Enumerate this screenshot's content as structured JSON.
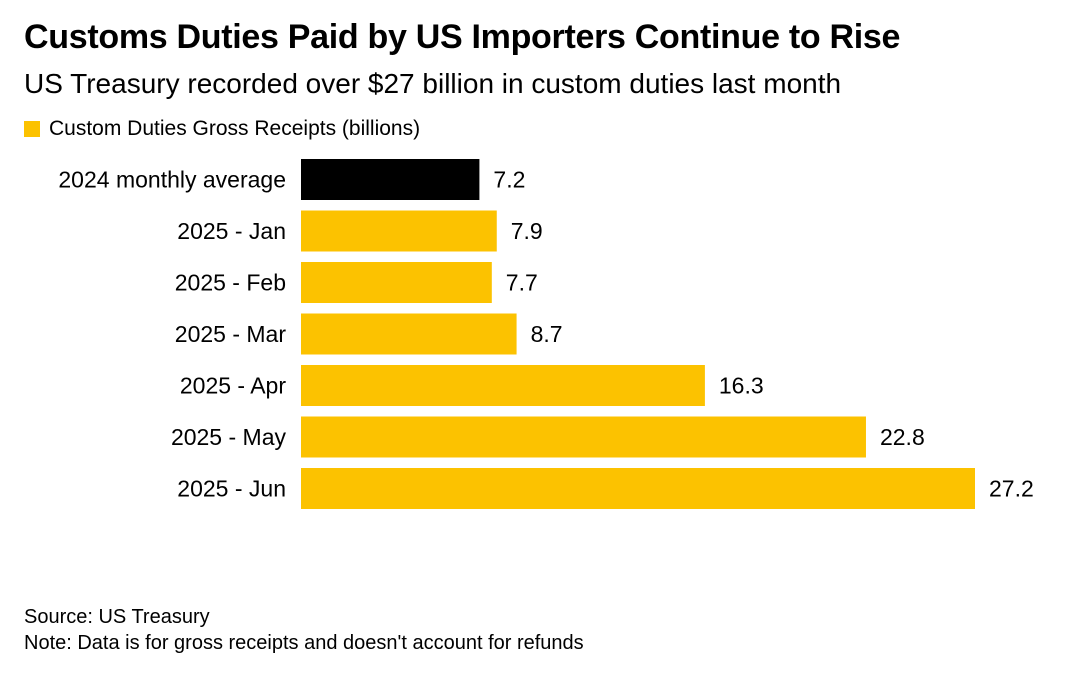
{
  "header": {
    "title": "Customs Duties Paid by US Importers Continue to Rise",
    "subtitle": "US Treasury recorded over $27 billion in custom duties last month"
  },
  "legend": {
    "label": "Custom Duties Gross Receipts (billions)",
    "color": "#FCC200"
  },
  "chart_data": {
    "type": "bar",
    "orientation": "horizontal",
    "title": "Customs Duties Paid by US Importers Continue to Rise",
    "subtitle": "US Treasury recorded over $27 billion in custom duties last month",
    "categories": [
      "2024 monthly average",
      "2025 - Jan",
      "2025 - Feb",
      "2025 - Mar",
      "2025 - Apr",
      "2025 - May",
      "2025 - Jun"
    ],
    "values": [
      7.2,
      7.9,
      7.7,
      8.7,
      16.3,
      22.8,
      27.2
    ],
    "data_labels": [
      "7.2",
      "7.9",
      "7.7",
      "8.7",
      "16.3",
      "22.8",
      "27.2"
    ],
    "colors": [
      "#000000",
      "#FCC200",
      "#FCC200",
      "#FCC200",
      "#FCC200",
      "#FCC200",
      "#FCC200"
    ],
    "series": [
      {
        "name": "Custom Duties Gross Receipts (billions)",
        "values": [
          7.2,
          7.9,
          7.7,
          8.7,
          16.3,
          22.8,
          27.2
        ]
      }
    ],
    "xlim": [
      0,
      27.2
    ],
    "grid": false,
    "legend_position": "top-left"
  },
  "footer": {
    "source": "Source: US Treasury",
    "note": "Note: Data is for gross receipts and doesn't account for refunds"
  }
}
